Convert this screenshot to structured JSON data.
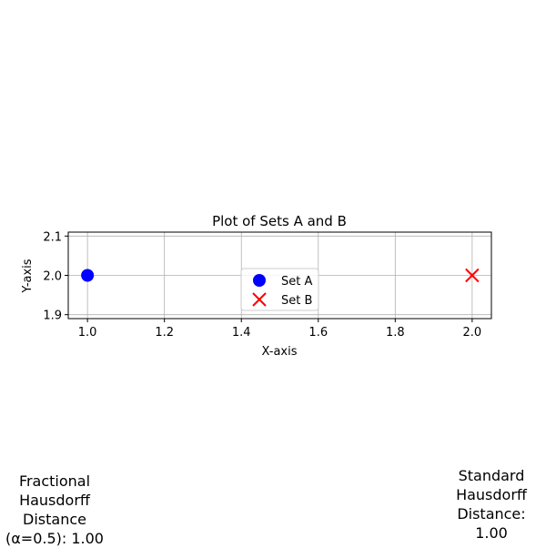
{
  "chart_data": {
    "type": "scatter",
    "title": "Plot of Sets A and B",
    "xlabel": "X-axis",
    "ylabel": "Y-axis",
    "xlim": [
      0.95,
      2.05
    ],
    "ylim": [
      1.89,
      2.11
    ],
    "xticks": [
      1.0,
      1.2,
      1.4,
      1.6,
      1.8,
      2.0
    ],
    "xtick_labels": [
      "1.0",
      "1.2",
      "1.4",
      "1.6",
      "1.8",
      "2.0"
    ],
    "yticks": [
      1.9,
      2.0,
      2.1
    ],
    "ytick_labels": [
      "1.9",
      "2.0",
      "2.1"
    ],
    "grid": true,
    "legend_position": "center",
    "series": [
      {
        "name": "Set A",
        "marker": "circle",
        "color": "#0000ff",
        "points": [
          [
            1.0,
            2.0
          ]
        ]
      },
      {
        "name": "Set B",
        "marker": "x",
        "color": "#ff0000",
        "points": [
          [
            2.0,
            2.0
          ]
        ]
      }
    ]
  },
  "annotations": {
    "fractional": [
      "Fractional",
      "Hausdorff",
      "Distance",
      "(α=0.5): 1.00"
    ],
    "standard": [
      "Standard",
      "Hausdorff",
      "Distance:",
      "1.00"
    ]
  }
}
